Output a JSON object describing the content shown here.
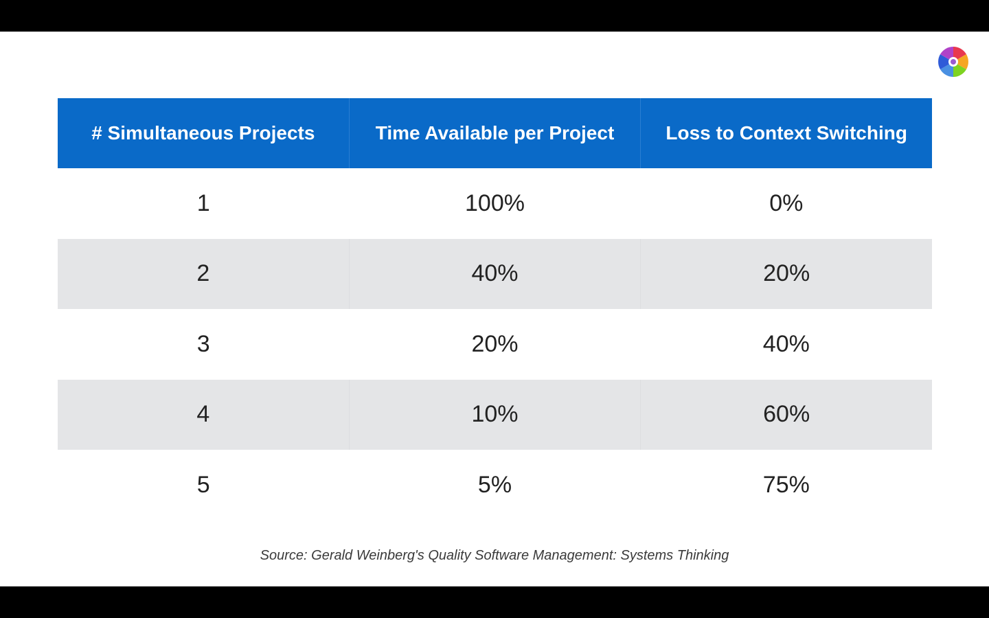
{
  "chart_data": {
    "type": "table",
    "columns": [
      "# Simultaneous Projects",
      "Time Available per Project",
      "Loss to Context Switching"
    ],
    "rows": [
      [
        "1",
        "100%",
        "0%"
      ],
      [
        "2",
        "40%",
        "20%"
      ],
      [
        "3",
        "20%",
        "40%"
      ],
      [
        "4",
        "10%",
        "60%"
      ],
      [
        "5",
        "5%",
        "75%"
      ]
    ],
    "source": "Source: Gerald Weinberg's Quality Software Management: Systems Thinking"
  },
  "colors": {
    "header_bg": "#0a6ac8",
    "shaded_row_bg": "#e4e5e7",
    "slide_bg": "#ffffff"
  },
  "logo": {
    "icon": "pinwheel-logo-icon"
  }
}
